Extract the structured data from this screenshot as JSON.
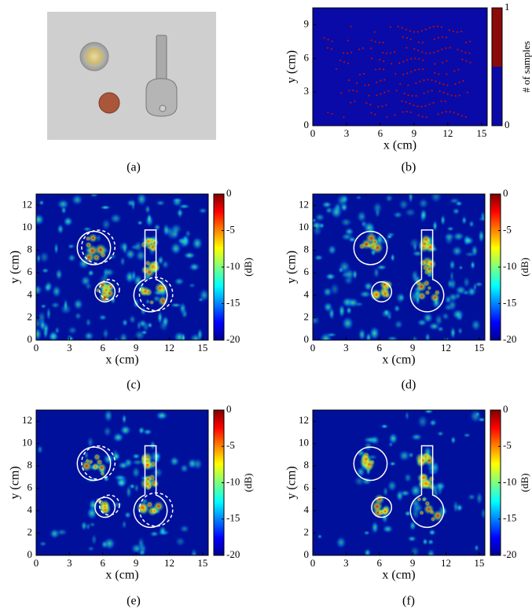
{
  "panels": [
    {
      "label": "(a)"
    },
    {
      "label": "(b)",
      "xlabel": "x (cm)",
      "ylabel": "y (cm)",
      "xlim": [
        0,
        15.5
      ],
      "ylim": [
        0,
        10.5
      ],
      "xticks": [
        0,
        3,
        6,
        9,
        12,
        15
      ],
      "yticks": [
        0,
        3,
        6,
        9
      ],
      "colorbar_label": "# of samples",
      "clim": [
        0,
        1
      ],
      "colorbar_ticks": [
        0,
        1
      ]
    },
    {
      "label": "(c)",
      "xlabel": "x (cm)",
      "ylabel": "y (cm)",
      "xlim": [
        0,
        15.5
      ],
      "ylim": [
        0,
        13
      ],
      "xticks": [
        0,
        3,
        6,
        9,
        12,
        15
      ],
      "yticks": [
        0,
        2,
        4,
        6,
        8,
        10,
        12
      ],
      "colorbar_label": "(dB)",
      "clim": [
        -20,
        0
      ],
      "colorbar_ticks": [
        0,
        -5,
        -10,
        -15,
        -20
      ]
    },
    {
      "label": "(d)",
      "xlabel": "x (cm)",
      "ylabel": "y (cm)",
      "xlim": [
        0,
        15.5
      ],
      "ylim": [
        0,
        13
      ],
      "xticks": [
        0,
        3,
        6,
        9,
        12,
        15
      ],
      "yticks": [
        0,
        2,
        4,
        6,
        8,
        10,
        12
      ],
      "colorbar_label": "(dB)",
      "clim": [
        -20,
        0
      ],
      "colorbar_ticks": [
        0,
        -5,
        -10,
        -15,
        -20
      ]
    },
    {
      "label": "(e)",
      "xlabel": "x (cm)",
      "ylabel": "y (cm)",
      "xlim": [
        0,
        15.5
      ],
      "ylim": [
        0,
        13
      ],
      "xticks": [
        0,
        3,
        6,
        9,
        12,
        15
      ],
      "yticks": [
        0,
        2,
        4,
        6,
        8,
        10,
        12
      ],
      "colorbar_label": "(dB)",
      "clim": [
        -20,
        0
      ],
      "colorbar_ticks": [
        0,
        -5,
        -10,
        -15,
        -20
      ]
    },
    {
      "label": "(f)",
      "xlabel": "x (cm)",
      "ylabel": "y (cm)",
      "xlim": [
        0,
        15.5
      ],
      "ylim": [
        0,
        13
      ],
      "xticks": [
        0,
        3,
        6,
        9,
        12,
        15
      ],
      "yticks": [
        0,
        2,
        4,
        6,
        8,
        10,
        12
      ],
      "colorbar_label": "(dB)",
      "clim": [
        -20,
        0
      ],
      "colorbar_ticks": [
        0,
        -5,
        -10,
        -15,
        -20
      ]
    }
  ]
}
